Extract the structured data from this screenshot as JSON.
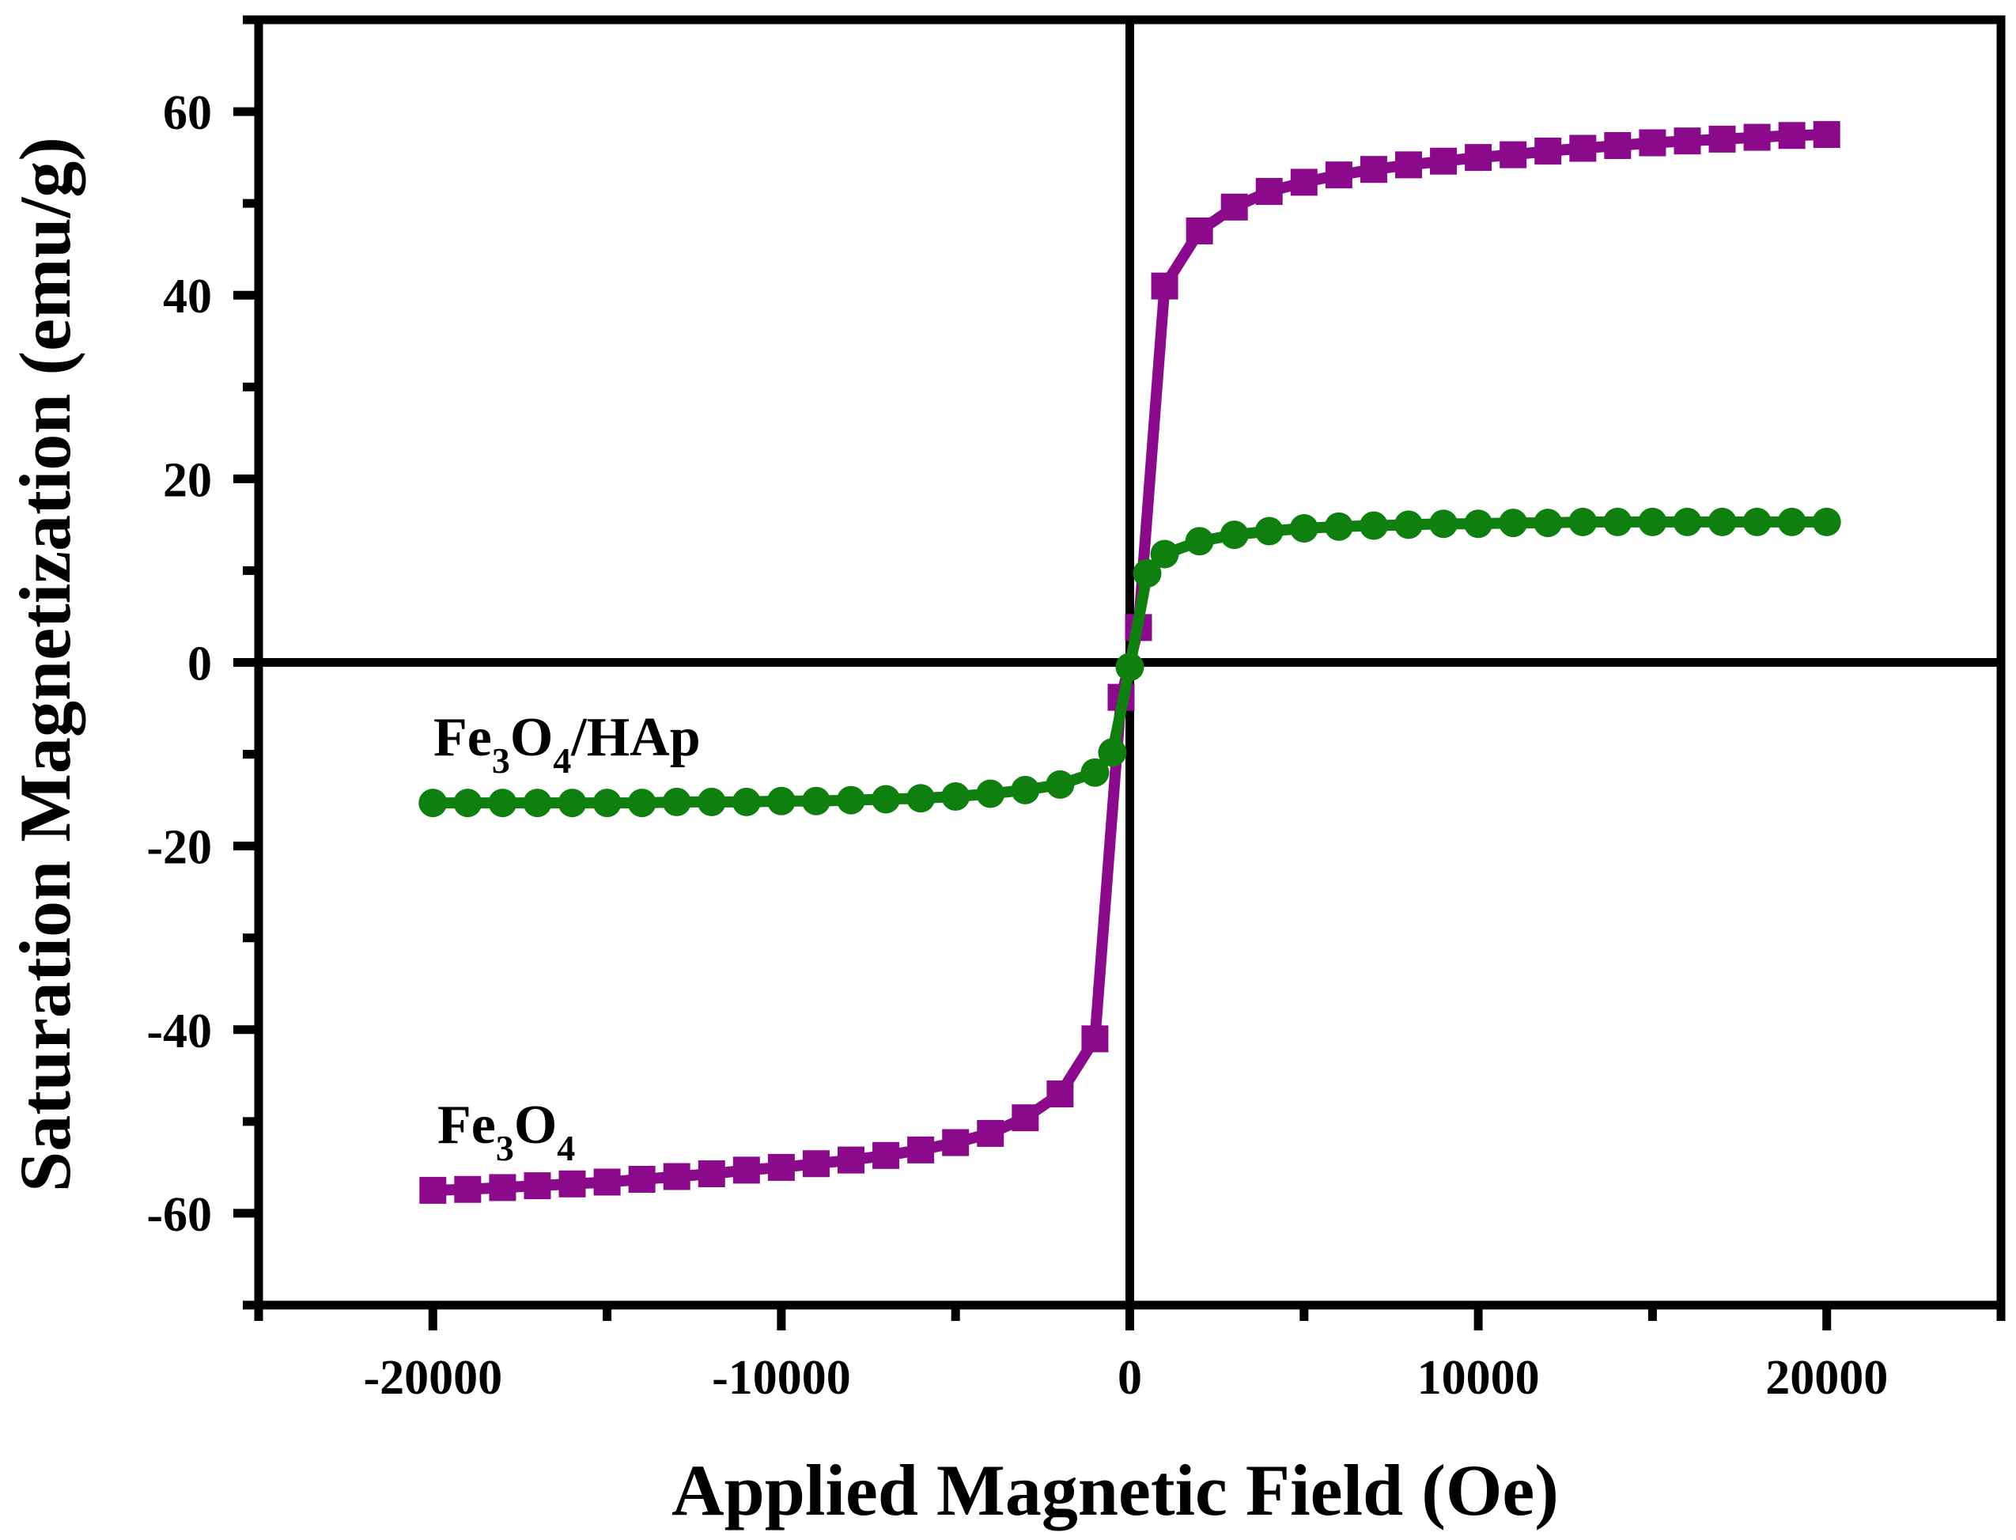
{
  "chart_data": {
    "type": "scatter",
    "title": "",
    "xlabel": "Applied Magnetic Field (Oe)",
    "ylabel": "Saturation Magnetization (emu/g)",
    "xlim": [
      -25000,
      25000
    ],
    "ylim": [
      -70,
      70
    ],
    "xticks": [
      -20000,
      -10000,
      0,
      10000,
      20000
    ],
    "xtick_labels": [
      "-20000",
      "-10000",
      "0",
      "10000",
      "20000"
    ],
    "yticks": [
      -60,
      -40,
      -20,
      0,
      20,
      40,
      60
    ],
    "ytick_labels": [
      "-60",
      "-40",
      "-20",
      "0",
      "20",
      "40",
      "60"
    ],
    "grid": false,
    "colors": {
      "fe3o4": "#8b0a8b",
      "fe3o4_hap": "#0f7f10",
      "axis": "#000000"
    },
    "series": [
      {
        "name": "Fe3O4",
        "label_parts": {
          "a": "Fe",
          "b": "3",
          "c": "O",
          "d": "4"
        },
        "marker": "square",
        "x": [
          -20000,
          -19000,
          -18000,
          -17000,
          -16000,
          -15000,
          -14000,
          -13000,
          -12000,
          -11000,
          -10000,
          -9000,
          -8000,
          -7000,
          -6000,
          -5000,
          -4000,
          -3000,
          -2000,
          -1000,
          -250,
          250,
          1000,
          2000,
          3000,
          4000,
          5000,
          6000,
          7000,
          8000,
          9000,
          10000,
          11000,
          12000,
          13000,
          14000,
          15000,
          16000,
          17000,
          18000,
          19000,
          20000
        ],
        "y": [
          -57.5,
          -57.4,
          -57.2,
          -57.0,
          -56.8,
          -56.6,
          -56.3,
          -56.0,
          -55.7,
          -55.3,
          -55.0,
          -54.6,
          -54.2,
          -53.7,
          -53.1,
          -52.3,
          -51.3,
          -49.6,
          -47.0,
          -41.0,
          -3.8,
          3.8,
          41.0,
          47.0,
          49.6,
          51.3,
          52.3,
          53.1,
          53.7,
          54.2,
          54.6,
          55.0,
          55.3,
          55.7,
          56.0,
          56.3,
          56.6,
          56.8,
          57.0,
          57.2,
          57.4,
          57.5
        ]
      },
      {
        "name": "Fe3O4/HAp",
        "label_parts": {
          "a": "Fe",
          "b": "3",
          "c": "O",
          "d": "4",
          "e": "/HAp"
        },
        "marker": "circle",
        "x": [
          -20000,
          -19000,
          -18000,
          -17000,
          -16000,
          -15000,
          -14000,
          -13000,
          -12000,
          -11000,
          -10000,
          -9000,
          -8000,
          -7000,
          -6000,
          -5000,
          -4000,
          -3000,
          -2000,
          -1000,
          -500,
          0,
          500,
          1000,
          2000,
          3000,
          4000,
          5000,
          6000,
          7000,
          8000,
          9000,
          10000,
          11000,
          12000,
          13000,
          14000,
          15000,
          16000,
          17000,
          18000,
          19000,
          20000
        ],
        "y": [
          -15.3,
          -15.3,
          -15.3,
          -15.3,
          -15.3,
          -15.3,
          -15.3,
          -15.2,
          -15.2,
          -15.2,
          -15.1,
          -15.1,
          -15.0,
          -14.9,
          -14.8,
          -14.6,
          -14.3,
          -13.9,
          -13.3,
          -12.0,
          -9.8,
          -0.5,
          9.7,
          11.8,
          13.2,
          13.9,
          14.3,
          14.6,
          14.8,
          14.9,
          15.0,
          15.1,
          15.1,
          15.2,
          15.2,
          15.3,
          15.3,
          15.3,
          15.3,
          15.3,
          15.3,
          15.3,
          15.3
        ]
      }
    ]
  }
}
